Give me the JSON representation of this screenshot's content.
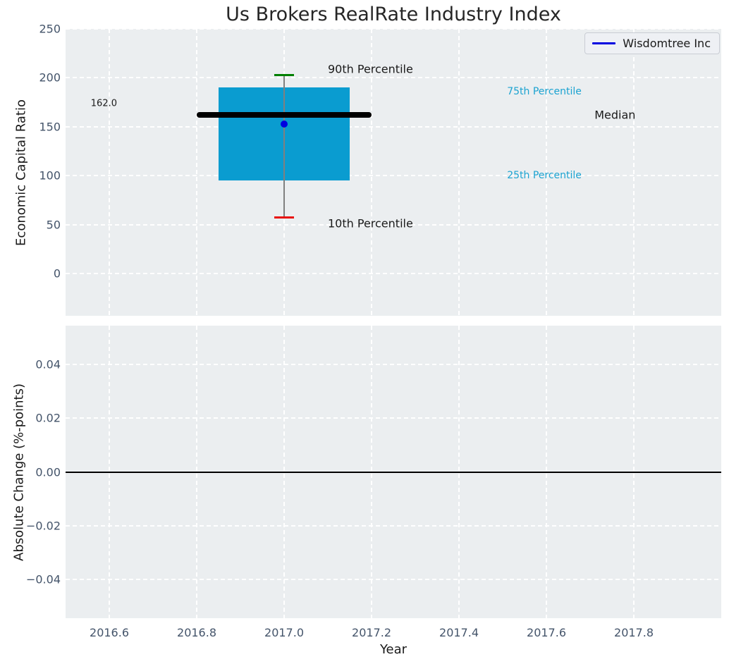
{
  "figure": {
    "title": "Us Brokers RealRate Industry Index"
  },
  "legend": {
    "label": "Wisdomtree Inc",
    "line_color": "#0000e0"
  },
  "colors": {
    "plot_bg": "#ebeef0",
    "grid": "#ffffff",
    "tick_label": "#44546a",
    "text": "#1a1a1a",
    "title": "#262626",
    "box_fill": "#0a9cd0",
    "median_line": "#000000",
    "whisker": "#808080",
    "cap_high": "#008000",
    "cap_low": "#e8100b",
    "company_dot": "#0000e0",
    "percentile_label": "#1ba3d1",
    "zero_line": "#000000"
  },
  "chart_data": [
    {
      "type": "boxplot",
      "title": "Us Brokers RealRate Industry Index",
      "ylabel": "Economic Capital Ratio",
      "ylim": [
        -43,
        250
      ],
      "ytick_values": [
        0,
        50,
        100,
        150,
        200,
        250
      ],
      "ytick_labels": [
        "0",
        "50",
        "100",
        "150",
        "200",
        "250"
      ],
      "grid": true,
      "legend_position": "upper right",
      "series_name": "Wisdomtree Inc",
      "box": {
        "x_center": 2017.0,
        "x_left": 2016.85,
        "x_right": 2017.15,
        "p10": 57.5,
        "p25": 95,
        "median": 162.0,
        "p75": 190,
        "p90": 203,
        "median_label": "162.0",
        "median_line_x_left": 2016.8,
        "median_line_x_right": 2017.2,
        "cap_half_width": 0.022,
        "company_point": {
          "x": 2017.0,
          "value": 152.5
        }
      },
      "annotations": [
        {
          "text": "162.0",
          "x": 2016.75,
          "y": 174,
          "ha": "right",
          "size": 13,
          "color_key": "text"
        },
        {
          "text": "90th Percentile",
          "x": 2017.1,
          "y": 209,
          "ha": "left",
          "size": 16,
          "color_key": "text"
        },
        {
          "text": "10th Percentile",
          "x": 2017.1,
          "y": 51,
          "ha": "left",
          "size": 16,
          "color_key": "text"
        },
        {
          "text": "75th Percentile",
          "x": 2017.51,
          "y": 186,
          "ha": "left",
          "size": 14,
          "color_key": "percentile_label"
        },
        {
          "text": "25th Percentile",
          "x": 2017.51,
          "y": 100,
          "ha": "left",
          "size": 14,
          "color_key": "percentile_label"
        },
        {
          "text": "Median",
          "x": 2017.71,
          "y": 162,
          "ha": "left",
          "size": 16,
          "color_key": "text"
        }
      ]
    },
    {
      "type": "line",
      "ylabel": "Absolute Change (%-points)",
      "xlabel": "Year",
      "xlim": [
        2016.5,
        2018.0
      ],
      "xtick_values": [
        2016.6,
        2016.8,
        2017.0,
        2017.2,
        2017.4,
        2017.6,
        2017.8
      ],
      "xtick_labels": [
        "2016.6",
        "2016.8",
        "2017.0",
        "2017.2",
        "2017.4",
        "2017.6",
        "2017.8"
      ],
      "ylim": [
        -0.0545,
        0.0545
      ],
      "ytick_values": [
        0.04,
        0.02,
        0.0,
        -0.02,
        -0.04
      ],
      "ytick_labels": [
        "0.04",
        "0.02",
        "0.00",
        "−0.02",
        "−0.04"
      ],
      "zero_line": 0.0,
      "series": [],
      "grid": true
    }
  ]
}
